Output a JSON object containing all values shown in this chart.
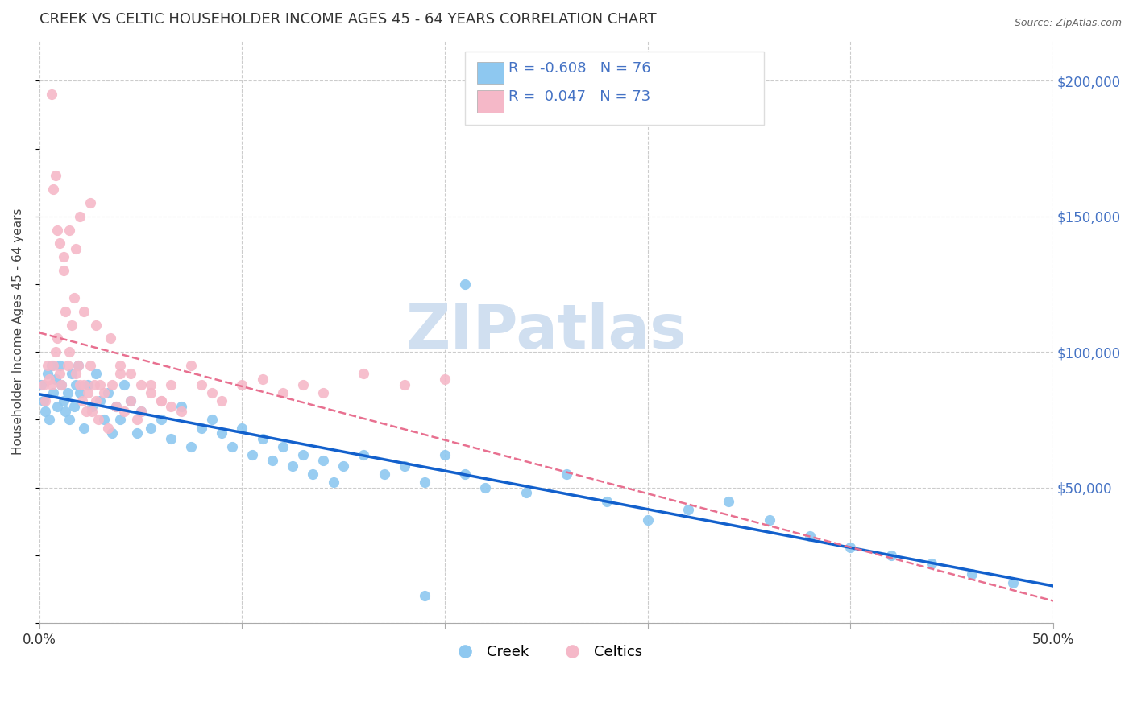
{
  "title": "CREEK VS CELTIC HOUSEHOLDER INCOME AGES 45 - 64 YEARS CORRELATION CHART",
  "source": "Source: ZipAtlas.com",
  "ylabel": "Householder Income Ages 45 - 64 years",
  "xlim": [
    0.0,
    0.5
  ],
  "ylim": [
    0,
    215000
  ],
  "xticks": [
    0.0,
    0.1,
    0.2,
    0.3,
    0.4,
    0.5
  ],
  "xticklabels": [
    "0.0%",
    "",
    "",
    "",
    "",
    "50.0%"
  ],
  "yticks_right": [
    50000,
    100000,
    150000,
    200000
  ],
  "yticklabels_right": [
    "$50,000",
    "$100,000",
    "$150,000",
    "$200,000"
  ],
  "creek_color": "#8EC8F0",
  "celtics_color": "#F5B8C8",
  "creek_line_color": "#1260CC",
  "celtics_line_color": "#E87090",
  "creek_R": -0.608,
  "creek_N": 76,
  "celtics_R": 0.047,
  "celtics_N": 73,
  "watermark": "ZIPatlas",
  "watermark_color": "#D0DFF0",
  "background_color": "#FFFFFF",
  "legend_creek_label": "Creek",
  "legend_celtics_label": "Celtics",
  "creek_x": [
    0.001,
    0.002,
    0.003,
    0.004,
    0.005,
    0.006,
    0.007,
    0.008,
    0.009,
    0.01,
    0.011,
    0.012,
    0.013,
    0.014,
    0.015,
    0.016,
    0.017,
    0.018,
    0.019,
    0.02,
    0.022,
    0.024,
    0.026,
    0.028,
    0.03,
    0.032,
    0.034,
    0.036,
    0.038,
    0.04,
    0.042,
    0.045,
    0.048,
    0.05,
    0.055,
    0.06,
    0.065,
    0.07,
    0.075,
    0.08,
    0.085,
    0.09,
    0.095,
    0.1,
    0.105,
    0.11,
    0.115,
    0.12,
    0.125,
    0.13,
    0.135,
    0.14,
    0.145,
    0.15,
    0.16,
    0.17,
    0.18,
    0.19,
    0.2,
    0.21,
    0.22,
    0.24,
    0.26,
    0.28,
    0.3,
    0.32,
    0.34,
    0.36,
    0.38,
    0.4,
    0.42,
    0.44,
    0.46,
    0.48,
    0.21,
    0.19
  ],
  "creek_y": [
    88000,
    82000,
    78000,
    92000,
    75000,
    95000,
    85000,
    90000,
    80000,
    95000,
    88000,
    82000,
    78000,
    85000,
    75000,
    92000,
    80000,
    88000,
    95000,
    85000,
    72000,
    88000,
    80000,
    92000,
    82000,
    75000,
    85000,
    70000,
    80000,
    75000,
    88000,
    82000,
    70000,
    78000,
    72000,
    75000,
    68000,
    80000,
    65000,
    72000,
    75000,
    70000,
    65000,
    72000,
    62000,
    68000,
    60000,
    65000,
    58000,
    62000,
    55000,
    60000,
    52000,
    58000,
    62000,
    55000,
    58000,
    52000,
    62000,
    55000,
    50000,
    48000,
    55000,
    45000,
    38000,
    42000,
    45000,
    38000,
    32000,
    28000,
    25000,
    22000,
    18000,
    15000,
    125000,
    10000
  ],
  "celtics_x": [
    0.002,
    0.003,
    0.004,
    0.005,
    0.006,
    0.007,
    0.008,
    0.009,
    0.01,
    0.011,
    0.012,
    0.013,
    0.014,
    0.015,
    0.016,
    0.017,
    0.018,
    0.019,
    0.02,
    0.021,
    0.022,
    0.023,
    0.024,
    0.025,
    0.026,
    0.027,
    0.028,
    0.029,
    0.03,
    0.032,
    0.034,
    0.036,
    0.038,
    0.04,
    0.042,
    0.045,
    0.048,
    0.05,
    0.055,
    0.06,
    0.065,
    0.07,
    0.075,
    0.08,
    0.085,
    0.09,
    0.1,
    0.11,
    0.12,
    0.13,
    0.14,
    0.16,
    0.18,
    0.2,
    0.015,
    0.02,
    0.025,
    0.008,
    0.01,
    0.012,
    0.006,
    0.007,
    0.009,
    0.018,
    0.022,
    0.028,
    0.035,
    0.04,
    0.045,
    0.05,
    0.055,
    0.06,
    0.065
  ],
  "celtics_y": [
    88000,
    82000,
    95000,
    90000,
    88000,
    95000,
    100000,
    105000,
    92000,
    88000,
    130000,
    115000,
    95000,
    100000,
    110000,
    120000,
    92000,
    95000,
    88000,
    82000,
    88000,
    78000,
    85000,
    95000,
    78000,
    88000,
    82000,
    75000,
    88000,
    85000,
    72000,
    88000,
    80000,
    92000,
    78000,
    82000,
    75000,
    78000,
    88000,
    82000,
    88000,
    78000,
    95000,
    88000,
    85000,
    82000,
    88000,
    90000,
    85000,
    88000,
    85000,
    92000,
    88000,
    90000,
    145000,
    150000,
    155000,
    165000,
    140000,
    135000,
    195000,
    160000,
    145000,
    138000,
    115000,
    110000,
    105000,
    95000,
    92000,
    88000,
    85000,
    82000,
    80000
  ]
}
